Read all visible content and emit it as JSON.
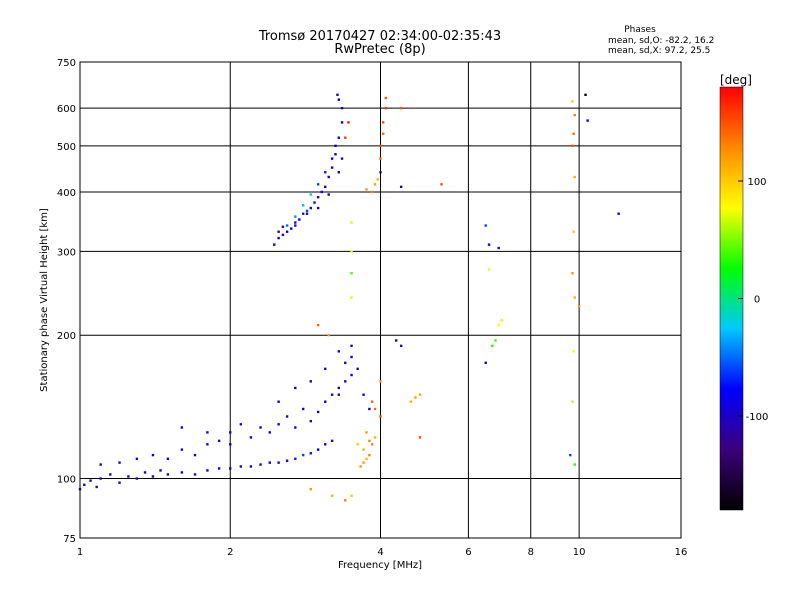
{
  "chart_data": {
    "type": "scatter",
    "title": "Tromsø 20170427 02:34:00-02:35:43",
    "subtitle": "RwPretec (8p)",
    "xlabel": "Frequency [MHz]",
    "ylabel": "Stationary phase Virtual Height [km]",
    "x_scale": "log",
    "y_scale": "log",
    "xlim": [
      1,
      16
    ],
    "ylim": [
      75,
      750
    ],
    "x_ticks": [
      1,
      2,
      4,
      6,
      8,
      10,
      16
    ],
    "y_ticks": [
      75,
      100,
      200,
      300,
      400,
      500,
      600,
      750
    ],
    "grid": true,
    "phase_stats": {
      "heading": "Phases",
      "o_line": "mean, sd,O:  -82.2, 16.2",
      "x_line": "mean, sd,X:  97.2, 25.5"
    },
    "colorbar": {
      "label": "[deg]",
      "range": [
        -180,
        180
      ],
      "ticks": [
        100,
        0,
        -100
      ],
      "colormap": [
        "#000000",
        "#3c007a",
        "#0000ff",
        "#00c8ff",
        "#00ff00",
        "#ffff00",
        "#ff8800",
        "#ff0000"
      ]
    },
    "series": [
      {
        "points": [
          [
            1.0,
            95,
            -95
          ],
          [
            1.02,
            97,
            -100
          ],
          [
            1.05,
            99,
            -90
          ],
          [
            1.08,
            96,
            -110
          ],
          [
            1.1,
            100,
            -95
          ],
          [
            1.15,
            102,
            -100
          ],
          [
            1.2,
            98,
            -85
          ],
          [
            1.25,
            101,
            -95
          ],
          [
            1.3,
            100,
            -100
          ],
          [
            1.35,
            103,
            -90
          ],
          [
            1.4,
            101,
            -100
          ],
          [
            1.45,
            104,
            -80
          ],
          [
            1.5,
            102,
            -95
          ],
          [
            1.6,
            103,
            -100
          ],
          [
            1.7,
            102,
            -90
          ],
          [
            1.8,
            104,
            -95
          ],
          [
            1.9,
            105,
            -100
          ],
          [
            2.0,
            105,
            -95
          ],
          [
            2.1,
            106,
            -90
          ],
          [
            2.2,
            106,
            -100
          ],
          [
            2.3,
            107,
            -95
          ],
          [
            2.4,
            108,
            -85
          ],
          [
            2.5,
            108,
            -90
          ],
          [
            2.6,
            109,
            -80
          ],
          [
            2.7,
            110,
            -70
          ],
          [
            2.8,
            112,
            -60
          ],
          [
            2.9,
            113,
            -70
          ],
          [
            3.0,
            115,
            -80
          ],
          [
            3.1,
            118,
            -90
          ],
          [
            3.2,
            120,
            -100
          ],
          [
            1.1,
            107,
            -100
          ],
          [
            1.2,
            108,
            -110
          ],
          [
            1.3,
            110,
            -100
          ],
          [
            1.4,
            112,
            -90
          ],
          [
            1.5,
            110,
            -100
          ],
          [
            1.6,
            115,
            -100
          ],
          [
            1.7,
            112,
            -95
          ],
          [
            1.8,
            118,
            -90
          ],
          [
            1.9,
            120,
            -100
          ],
          [
            2.0,
            125,
            -90
          ],
          [
            2.0,
            118,
            -80
          ],
          [
            2.1,
            130,
            -90
          ],
          [
            2.2,
            122,
            -100
          ],
          [
            2.3,
            128,
            -110
          ],
          [
            2.4,
            125,
            -90
          ],
          [
            2.5,
            130,
            -95
          ],
          [
            2.6,
            135,
            -100
          ],
          [
            2.7,
            128,
            -90
          ],
          [
            2.8,
            140,
            -100
          ],
          [
            2.9,
            132,
            -110
          ],
          [
            3.0,
            138,
            -100
          ],
          [
            3.1,
            145,
            -95
          ],
          [
            3.2,
            150,
            -100
          ],
          [
            3.3,
            155,
            -110
          ],
          [
            3.4,
            160,
            -100
          ],
          [
            3.5,
            165,
            -95
          ],
          [
            3.6,
            170,
            -100
          ],
          [
            3.5,
            180,
            -90
          ],
          [
            3.4,
            175,
            -110
          ],
          [
            3.3,
            150,
            -120
          ],
          [
            1.6,
            128,
            -100
          ],
          [
            1.8,
            125,
            -90
          ],
          [
            2.5,
            145,
            -80
          ],
          [
            2.7,
            155,
            -100
          ],
          [
            2.9,
            160,
            -110
          ],
          [
            3.1,
            170,
            -100
          ],
          [
            3.3,
            185,
            -90
          ],
          [
            3.5,
            190,
            -100
          ],
          [
            3.7,
            150,
            -100
          ],
          [
            3.8,
            140,
            -110
          ],
          [
            3.7,
            108,
            120
          ],
          [
            3.75,
            110,
            110
          ],
          [
            3.8,
            112,
            130
          ],
          [
            3.65,
            106,
            120
          ],
          [
            3.7,
            115,
            110
          ],
          [
            3.8,
            120,
            130
          ],
          [
            3.75,
            125,
            120
          ],
          [
            3.85,
            118,
            130
          ],
          [
            3.9,
            122,
            110
          ],
          [
            3.6,
            118,
            100
          ],
          [
            3.9,
            140,
            140
          ],
          [
            4.0,
            135,
            150
          ],
          [
            4.0,
            160,
            120
          ],
          [
            3.85,
            145,
            140
          ],
          [
            4.6,
            145,
            110
          ],
          [
            4.7,
            148,
            120
          ],
          [
            4.8,
            150,
            115
          ],
          [
            4.8,
            122,
            150
          ],
          [
            4.3,
            195,
            -140
          ],
          [
            4.4,
            190,
            -110
          ],
          [
            6.5,
            175,
            -110
          ],
          [
            6.9,
            210,
            80
          ],
          [
            7.0,
            215,
            70
          ],
          [
            6.7,
            190,
            30
          ],
          [
            6.8,
            195,
            40
          ],
          [
            3.0,
            210,
            140
          ],
          [
            3.15,
            200,
            120
          ],
          [
            2.9,
            95,
            120
          ],
          [
            3.2,
            92,
            110
          ],
          [
            3.4,
            90,
            130
          ],
          [
            3.5,
            92,
            100
          ],
          [
            9.8,
            107,
            30
          ],
          [
            9.7,
            145,
            60
          ],
          [
            9.75,
            185,
            80
          ],
          [
            9.8,
            240,
            110
          ],
          [
            9.7,
            270,
            120
          ],
          [
            10.0,
            230,
            120
          ],
          [
            9.75,
            330,
            100
          ],
          [
            2.45,
            310,
            -100
          ],
          [
            2.5,
            320,
            -95
          ],
          [
            2.55,
            325,
            -110
          ],
          [
            2.6,
            330,
            -100
          ],
          [
            2.65,
            335,
            -90
          ],
          [
            2.7,
            340,
            -100
          ],
          [
            2.75,
            350,
            -80
          ],
          [
            2.8,
            360,
            -70
          ],
          [
            2.85,
            365,
            -60
          ],
          [
            2.9,
            370,
            -80
          ],
          [
            2.95,
            380,
            -90
          ],
          [
            3.0,
            390,
            -100
          ],
          [
            3.05,
            400,
            -90
          ],
          [
            3.1,
            410,
            -100
          ],
          [
            3.15,
            430,
            -95
          ],
          [
            3.2,
            450,
            -100
          ],
          [
            3.25,
            480,
            -90
          ],
          [
            3.3,
            520,
            -100
          ],
          [
            3.35,
            560,
            -95
          ],
          [
            3.35,
            600,
            -90
          ],
          [
            3.3,
            625,
            -100
          ],
          [
            3.28,
            640,
            -110
          ],
          [
            2.6,
            340,
            -50
          ],
          [
            2.7,
            355,
            -40
          ],
          [
            2.8,
            375,
            -30
          ],
          [
            2.9,
            395,
            -20
          ],
          [
            3.0,
            415,
            -60
          ],
          [
            3.1,
            440,
            -70
          ],
          [
            3.2,
            470,
            -80
          ],
          [
            3.25,
            500,
            -90
          ],
          [
            2.5,
            330,
            -120
          ],
          [
            2.55,
            338,
            -130
          ],
          [
            2.7,
            345,
            -110
          ],
          [
            2.85,
            360,
            -120
          ],
          [
            3.0,
            370,
            -110
          ],
          [
            3.15,
            395,
            -100
          ],
          [
            3.3,
            440,
            -110
          ],
          [
            3.35,
            470,
            -120
          ],
          [
            3.5,
            345,
            70
          ],
          [
            3.5,
            300,
            80
          ],
          [
            3.5,
            270,
            40
          ],
          [
            3.5,
            240,
            70
          ],
          [
            3.85,
            400,
            130
          ],
          [
            3.9,
            415,
            120
          ],
          [
            3.95,
            425,
            110
          ],
          [
            3.75,
            405,
            120
          ],
          [
            4.0,
            470,
            140
          ],
          [
            4.0,
            500,
            150
          ],
          [
            4.05,
            530,
            140
          ],
          [
            4.05,
            560,
            150
          ],
          [
            4.1,
            600,
            160
          ],
          [
            4.1,
            630,
            150
          ],
          [
            4.0,
            440,
            -130
          ],
          [
            4.4,
            410,
            -120
          ],
          [
            4.4,
            600,
            150
          ],
          [
            5.3,
            415,
            150
          ],
          [
            3.4,
            520,
            160
          ],
          [
            3.45,
            560,
            170
          ],
          [
            6.5,
            340,
            -60
          ],
          [
            6.6,
            310,
            -90
          ],
          [
            6.9,
            305,
            -110
          ],
          [
            6.6,
            275,
            70
          ],
          [
            9.7,
            620,
            100
          ],
          [
            9.75,
            530,
            140
          ],
          [
            9.8,
            580,
            130
          ],
          [
            9.7,
            500,
            150
          ],
          [
            9.8,
            430,
            110
          ],
          [
            10.3,
            640,
            -170
          ],
          [
            10.4,
            565,
            -90
          ],
          [
            12.0,
            360,
            -110
          ],
          [
            9.6,
            112,
            -60
          ]
        ]
      }
    ]
  }
}
